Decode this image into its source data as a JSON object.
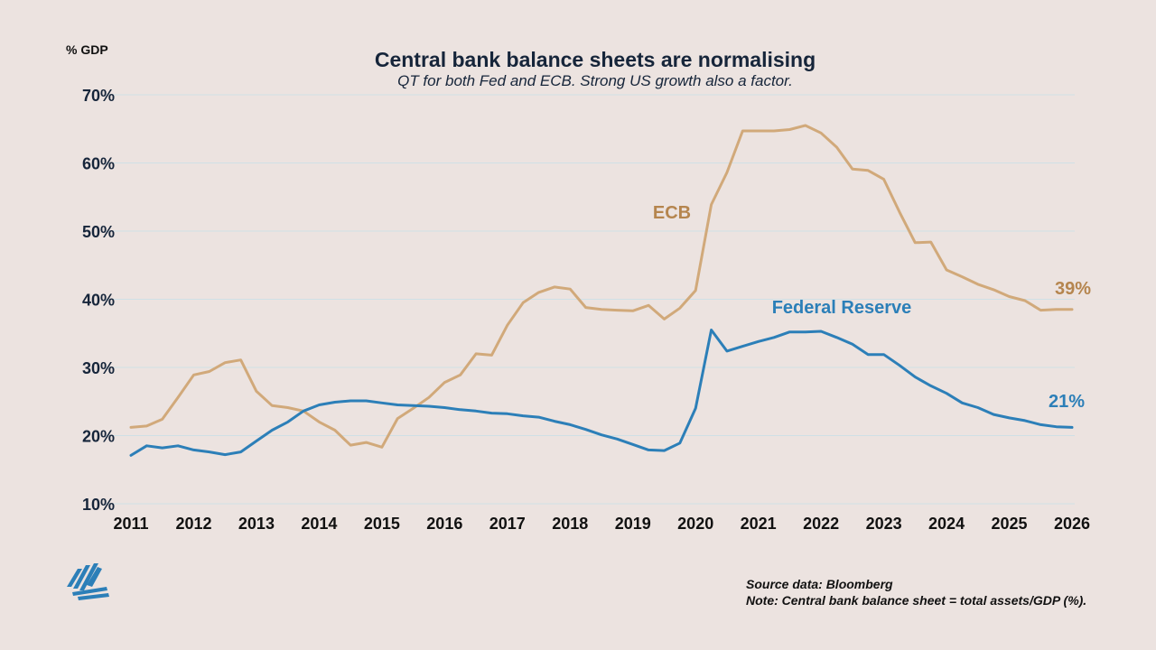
{
  "header": {
    "unit_label": "% GDP",
    "title": "Central bank balance sheets are normalising",
    "subtitle": "QT for both Fed and ECB. Strong US growth also a factor."
  },
  "footer": {
    "source": "Source data: Bloomberg",
    "note": "Note: Central bank balance sheet = total assets/GDP (%)."
  },
  "logo": {
    "icon": "company-logo-icon"
  },
  "chart_data": {
    "type": "line",
    "title": "Central bank balance sheets are normalising",
    "subtitle": "QT for both Fed and ECB. Strong US growth also a factor.",
    "ylabel": "% GDP",
    "ylim": [
      10,
      70
    ],
    "y_ticks": [
      10,
      20,
      30,
      40,
      50,
      60,
      70
    ],
    "y_tick_labels": [
      "10%",
      "20%",
      "30%",
      "40%",
      "50%",
      "60%",
      "70%"
    ],
    "xlim": [
      2011,
      2026
    ],
    "x_ticks": [
      2011,
      2012,
      2013,
      2014,
      2015,
      2016,
      2017,
      2018,
      2019,
      2020,
      2021,
      2022,
      2023,
      2024,
      2025,
      2026
    ],
    "x_tick_labels": [
      "2011",
      "2012",
      "2013",
      "2014",
      "2015",
      "2016",
      "2017",
      "2018",
      "2019",
      "2020",
      "2021",
      "2022",
      "2023",
      "2024",
      "2025",
      "2026"
    ],
    "grid": true,
    "series": [
      {
        "name": "ECB",
        "color": "#d1a97a",
        "label_color": "#b5854e",
        "end_label": "39%",
        "x": [
          2011.0,
          2011.25,
          2011.5,
          2011.75,
          2012.0,
          2012.25,
          2012.5,
          2012.75,
          2013.0,
          2013.25,
          2013.5,
          2013.75,
          2014.0,
          2014.25,
          2014.5,
          2014.75,
          2015.0,
          2015.25,
          2015.5,
          2015.75,
          2016.0,
          2016.25,
          2016.5,
          2016.75,
          2017.0,
          2017.25,
          2017.5,
          2017.75,
          2018.0,
          2018.25,
          2018.5,
          2018.75,
          2019.0,
          2019.25,
          2019.5,
          2019.75,
          2020.0,
          2020.25,
          2020.5,
          2020.75,
          2021.0,
          2021.25,
          2021.5,
          2021.75,
          2022.0,
          2022.25,
          2022.5,
          2022.75,
          2023.0,
          2023.25,
          2023.5,
          2023.75,
          2024.0,
          2024.25,
          2024.5,
          2024.75,
          2025.0,
          2025.25,
          2025.5,
          2025.75,
          2026.0
        ],
        "values": [
          21.2,
          21.4,
          22.4,
          25.6,
          28.9,
          29.4,
          30.7,
          31.1,
          26.5,
          24.4,
          24.1,
          23.6,
          22.0,
          20.8,
          18.6,
          19.0,
          18.3,
          22.5,
          24.0,
          25.6,
          27.8,
          28.9,
          32.0,
          31.8,
          36.2,
          39.5,
          41.0,
          41.8,
          41.5,
          38.8,
          38.5,
          38.4,
          38.3,
          39.1,
          37.1,
          38.7,
          41.3,
          53.9,
          58.6,
          64.7,
          64.7,
          64.7,
          64.9,
          65.5,
          64.4,
          62.3,
          59.1,
          58.9,
          57.6,
          52.8,
          48.3,
          48.4,
          44.3,
          43.3,
          42.2,
          41.4,
          40.4,
          39.8,
          38.4,
          38.5,
          38.5
        ]
      },
      {
        "name": "Federal Reserve",
        "color": "#2c7fb8",
        "label_color": "#2c7fb8",
        "end_label": "21%",
        "x": [
          2011.0,
          2011.25,
          2011.5,
          2011.75,
          2012.0,
          2012.25,
          2012.5,
          2012.75,
          2013.0,
          2013.25,
          2013.5,
          2013.75,
          2014.0,
          2014.25,
          2014.5,
          2014.75,
          2015.0,
          2015.25,
          2015.5,
          2015.75,
          2016.0,
          2016.25,
          2016.5,
          2016.75,
          2017.0,
          2017.25,
          2017.5,
          2017.75,
          2018.0,
          2018.25,
          2018.5,
          2018.75,
          2019.0,
          2019.25,
          2019.5,
          2019.75,
          2020.0,
          2020.25,
          2020.5,
          2020.75,
          2021.0,
          2021.25,
          2021.5,
          2021.75,
          2022.0,
          2022.25,
          2022.5,
          2022.75,
          2023.0,
          2023.25,
          2023.5,
          2023.75,
          2024.0,
          2024.25,
          2024.5,
          2024.75,
          2025.0,
          2025.25,
          2025.5,
          2025.75,
          2026.0
        ],
        "values": [
          17.1,
          18.5,
          18.2,
          18.5,
          17.9,
          17.6,
          17.2,
          17.6,
          19.2,
          20.8,
          22.0,
          23.6,
          24.5,
          24.9,
          25.1,
          25.1,
          24.8,
          24.5,
          24.4,
          24.3,
          24.1,
          23.8,
          23.6,
          23.3,
          23.2,
          22.9,
          22.7,
          22.1,
          21.6,
          20.9,
          20.1,
          19.5,
          18.7,
          17.9,
          17.8,
          18.9,
          24.0,
          35.5,
          32.4,
          33.1,
          33.8,
          34.4,
          35.2,
          35.2,
          35.3,
          34.4,
          33.4,
          31.9,
          31.9,
          30.3,
          28.6,
          27.3,
          26.2,
          24.8,
          24.1,
          23.1,
          22.6,
          22.2,
          21.6,
          21.3,
          21.2
        ]
      }
    ]
  }
}
